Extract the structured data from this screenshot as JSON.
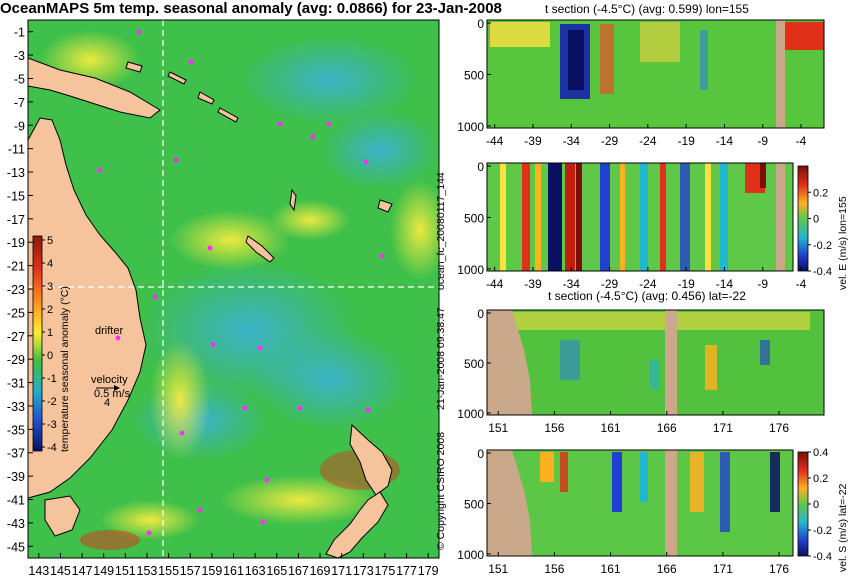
{
  "main_title": "OceanMAPS 5m temp. seasonal anomaly (avg: 0.0866) for 23-Jan-2008",
  "section_titles": [
    "t section (-4.5°C) (avg: 0.599) lon=155",
    "t section (-4.5°C) (avg: 0.456) lat=-22"
  ],
  "vertical_texts": {
    "run_id": "ocean_fc_20080117_144",
    "timestamp": "21-Jan-2008 09:38:47",
    "copyright": "© Copyright CSIRO 2008",
    "vel_e_label": "vel. E (m/s) lon=155",
    "vel_s_label": "vel. S (m/s) lat=-22",
    "temp_cbar_label": "temperature seasonal anomaly (°C)"
  },
  "map_labels": {
    "drifter": "drifter",
    "velocity": "velocity",
    "speed": "0.5 m/s",
    "anomaly_value": "4"
  },
  "colors": {
    "land": "#f5c49c",
    "section_land": "#c9a98a",
    "map_green": "#3fc04a",
    "drifter_marker": "#ff30ff"
  },
  "chart_data": [
    {
      "type": "heatmap",
      "name_ref": "map",
      "title": "OceanMAPS 5m temp. seasonal anomaly (avg: 0.0866) for 23-Jan-2008",
      "x_ticks": [
        "143",
        "145",
        "147",
        "149",
        "151",
        "153",
        "155",
        "157",
        "159",
        "161",
        "163",
        "165",
        "167",
        "169",
        "171",
        "173",
        "175",
        "177",
        "179"
      ],
      "y_ticks": [
        "-1",
        "-3",
        "-5",
        "-7",
        "-9",
        "-11",
        "-13",
        "-15",
        "-17",
        "-19",
        "-21",
        "-23",
        "-25",
        "-27",
        "-29",
        "-31",
        "-33",
        "-35",
        "-37",
        "-39",
        "-41",
        "-43",
        "-45"
      ],
      "xlim": [
        142,
        180
      ],
      "ylim": [
        -46,
        0
      ],
      "crosshair": {
        "lon": 155,
        "lat": -22
      },
      "colorbar": {
        "label": "temperature seasonal anomaly (°C)",
        "ticks": [
          "5",
          "4",
          "3",
          "2",
          "1",
          "0",
          "-1",
          "-2",
          "-3",
          "-4"
        ],
        "range": [
          -4,
          5
        ]
      }
    },
    {
      "type": "heatmap",
      "title": "t section (-4.5°C) (avg: 0.599) lon=155",
      "x_ticks": [
        "-44",
        "-39",
        "-34",
        "-29",
        "-24",
        "-19",
        "-14",
        "-9",
        "-4"
      ],
      "y_ticks": [
        "0",
        "500",
        "1000"
      ],
      "xlim": [
        -45,
        -1
      ],
      "ylim": [
        1000,
        0
      ]
    },
    {
      "type": "heatmap",
      "title": "",
      "x_ticks": [
        "-44",
        "-39",
        "-34",
        "-29",
        "-24",
        "-19",
        "-14",
        "-9",
        "-4"
      ],
      "y_ticks": [
        "0",
        "500",
        "1000"
      ],
      "colorbar": {
        "label": "vel. E (m/s) lon=155",
        "ticks": [
          "0.2",
          "0",
          "-0.2",
          "-0.4"
        ],
        "range": [
          -0.4,
          0.4
        ]
      }
    },
    {
      "type": "heatmap",
      "title": "t section (-4.5°C) (avg: 0.456) lat=-22",
      "x_ticks": [
        "151",
        "156",
        "161",
        "166",
        "171",
        "176"
      ],
      "y_ticks": [
        "0",
        "500",
        "1000"
      ],
      "xlim": [
        150,
        180
      ],
      "ylim": [
        1000,
        0
      ]
    },
    {
      "type": "heatmap",
      "title": "",
      "x_ticks": [
        "151",
        "156",
        "161",
        "166",
        "171",
        "176"
      ],
      "y_ticks": [
        "0",
        "500",
        "1000"
      ],
      "colorbar": {
        "label": "vel. S (m/s) lat=-22",
        "ticks": [
          "0.4",
          "0.2",
          "0",
          "-0.2",
          "-0.4"
        ],
        "range": [
          -0.4,
          0.4
        ]
      }
    }
  ]
}
